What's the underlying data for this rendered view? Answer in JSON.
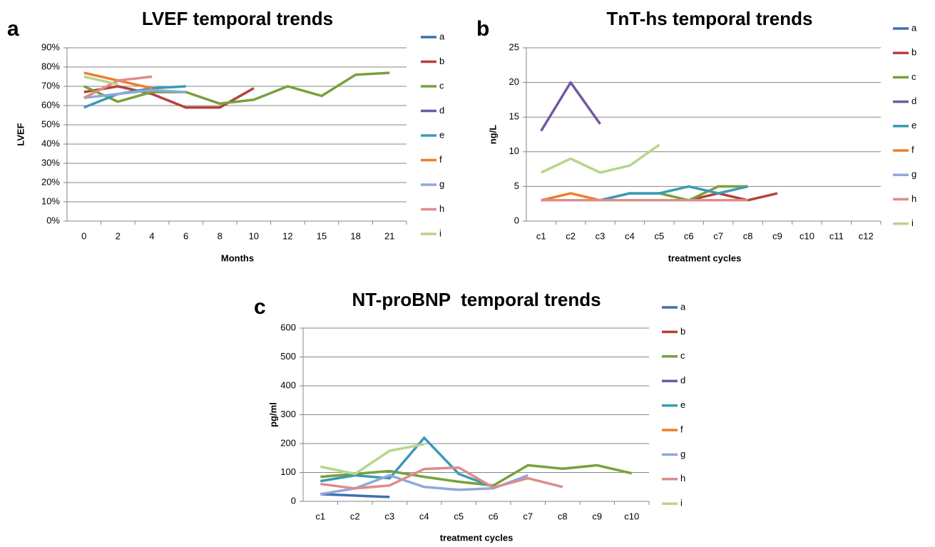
{
  "chart_data": [
    {
      "type": "line",
      "panel_label": "a",
      "title": "LVEF temporal trends",
      "x_label": "Months",
      "y_label": "LVEF",
      "categories": [
        "0",
        "2",
        "4",
        "6",
        "8",
        "10",
        "12",
        "15",
        "18",
        "21"
      ],
      "ylim": [
        0,
        90
      ],
      "yticks": [
        {
          "value": 0,
          "label": "0%"
        },
        {
          "value": 10,
          "label": "10%"
        },
        {
          "value": 20,
          "label": "20%"
        },
        {
          "value": 30,
          "label": "30%"
        },
        {
          "value": 40,
          "label": "40%"
        },
        {
          "value": 50,
          "label": "50%"
        },
        {
          "value": 60,
          "label": "60%"
        },
        {
          "value": 70,
          "label": "70%"
        },
        {
          "value": 80,
          "label": "80%"
        },
        {
          "value": 90,
          "label": "90%"
        }
      ],
      "grid": true,
      "legend": "right",
      "series": [
        {
          "name": "a",
          "color": "#3f6fb0",
          "values": [
            null,
            null,
            null,
            null,
            null,
            null,
            null,
            null,
            null,
            null
          ]
        },
        {
          "name": "b",
          "color": "#b5413d",
          "values": [
            67,
            70,
            66,
            59,
            59,
            69,
            null,
            null,
            null,
            null
          ]
        },
        {
          "name": "c",
          "color": "#77a13b",
          "values": [
            70,
            62,
            67,
            67,
            61,
            63,
            70,
            65,
            76,
            77
          ]
        },
        {
          "name": "d",
          "color": "#7358a0",
          "values": [
            null,
            null,
            null,
            null,
            null,
            null,
            null,
            null,
            null,
            null
          ]
        },
        {
          "name": "e",
          "color": "#3a9bb5",
          "values": [
            59,
            66,
            69,
            70,
            null,
            null,
            null,
            null,
            null,
            null
          ]
        },
        {
          "name": "f",
          "color": "#ec7f2c",
          "values": [
            77,
            73,
            69,
            null,
            null,
            null,
            null,
            null,
            null,
            null
          ]
        },
        {
          "name": "g",
          "color": "#8fa9d8",
          "values": [
            64,
            66,
            68,
            67,
            null,
            null,
            null,
            null,
            null,
            null
          ]
        },
        {
          "name": "h",
          "color": "#dc8d8a",
          "values": [
            64,
            73,
            75,
            null,
            null,
            null,
            null,
            null,
            null,
            null
          ]
        },
        {
          "name": "i",
          "color": "#b8d48c",
          "values": [
            75,
            71,
            null,
            null,
            null,
            null,
            null,
            null,
            null,
            null
          ]
        }
      ]
    },
    {
      "type": "line",
      "panel_label": "b",
      "title": "TnT-hs temporal trends",
      "x_label": "treatment cycles",
      "y_label": "ng/L",
      "categories": [
        "c1",
        "c2",
        "c3",
        "c4",
        "c5",
        "c6",
        "c7",
        "c8",
        "c9",
        "c10",
        "c11",
        "c12"
      ],
      "ylim": [
        0,
        25
      ],
      "yticks": [
        0,
        5,
        10,
        15,
        20,
        25
      ],
      "grid": true,
      "legend": "right",
      "series": [
        {
          "name": "a",
          "color": "#3f6fb0",
          "values": [
            null,
            null,
            null,
            null,
            null,
            null,
            null,
            null,
            null,
            null,
            null,
            null
          ]
        },
        {
          "name": "b",
          "color": "#b5413d",
          "values": [
            3,
            3,
            3,
            3,
            3,
            3,
            4,
            3,
            4,
            null,
            null,
            null
          ]
        },
        {
          "name": "c",
          "color": "#77a13b",
          "values": [
            3,
            3,
            3,
            4,
            4,
            3,
            5,
            5,
            null,
            null,
            null,
            null
          ]
        },
        {
          "name": "d",
          "color": "#7358a0",
          "values": [
            13,
            20,
            14,
            null,
            null,
            null,
            null,
            null,
            null,
            null,
            null,
            null
          ]
        },
        {
          "name": "e",
          "color": "#3a9bb5",
          "values": [
            3,
            3,
            3,
            4,
            4,
            5,
            4,
            5,
            null,
            null,
            null,
            null
          ]
        },
        {
          "name": "f",
          "color": "#ec7f2c",
          "values": [
            3,
            4,
            3,
            null,
            null,
            null,
            null,
            null,
            null,
            null,
            null,
            null
          ]
        },
        {
          "name": "g",
          "color": "#8fa9d8",
          "values": [
            3,
            3,
            3,
            3,
            3,
            3,
            3,
            3,
            null,
            null,
            null,
            null
          ]
        },
        {
          "name": "h",
          "color": "#dc8d8a",
          "values": [
            3,
            3,
            3,
            3,
            3,
            3,
            3,
            3,
            null,
            null,
            null,
            null
          ]
        },
        {
          "name": "i",
          "color": "#b8d48c",
          "values": [
            7,
            9,
            7,
            8,
            11,
            null,
            null,
            null,
            null,
            null,
            null,
            null
          ]
        }
      ]
    },
    {
      "type": "line",
      "panel_label": "c",
      "title": "NT-proBNP  temporal trends",
      "x_label": "treatment cycles",
      "y_label": "pg/ml",
      "categories": [
        "c1",
        "c2",
        "c3",
        "c4",
        "c5",
        "c6",
        "c7",
        "c8",
        "c9",
        "c10"
      ],
      "ylim": [
        0,
        600
      ],
      "yticks": [
        0,
        100,
        200,
        300,
        400,
        500,
        600
      ],
      "grid": true,
      "legend": "right",
      "series": [
        {
          "name": "a",
          "color": "#3f6fb0",
          "values": [
            25,
            20,
            15,
            null,
            null,
            null,
            null,
            null,
            null,
            null
          ]
        },
        {
          "name": "b",
          "color": "#b5413d",
          "values": [
            null,
            null,
            null,
            null,
            null,
            null,
            null,
            null,
            null,
            null
          ]
        },
        {
          "name": "c",
          "color": "#77a13b",
          "values": [
            85,
            95,
            105,
            85,
            68,
            55,
            125,
            113,
            125,
            97
          ]
        },
        {
          "name": "d",
          "color": "#7358a0",
          "values": [
            null,
            null,
            null,
            null,
            null,
            null,
            null,
            null,
            null,
            null
          ]
        },
        {
          "name": "e",
          "color": "#3a9bb5",
          "values": [
            70,
            90,
            80,
            220,
            95,
            50,
            null,
            null,
            null,
            null
          ]
        },
        {
          "name": "f",
          "color": "#ec7f2c",
          "values": [
            null,
            null,
            null,
            null,
            null,
            null,
            null,
            null,
            null,
            null
          ]
        },
        {
          "name": "g",
          "color": "#8fa9d8",
          "values": [
            25,
            45,
            90,
            50,
            40,
            45,
            90,
            null,
            null,
            null
          ]
        },
        {
          "name": "h",
          "color": "#dc8d8a",
          "values": [
            60,
            45,
            55,
            112,
            117,
            48,
            80,
            50,
            null,
            null
          ]
        },
        {
          "name": "i",
          "color": "#b8d48c",
          "values": [
            120,
            95,
            175,
            198,
            null,
            null,
            null,
            null,
            null,
            null
          ]
        }
      ]
    }
  ]
}
